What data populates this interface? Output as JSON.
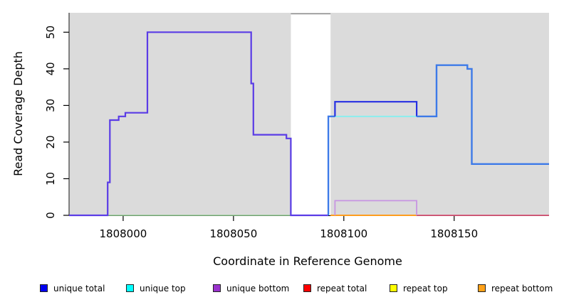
{
  "chart_data": {
    "type": "line",
    "subtype": "step-coverage-plot",
    "title": "",
    "xlabel": "Coordinate in Reference Genome",
    "ylabel": "Read Coverage Depth",
    "xlim": [
      1807975.5,
      1808193
    ],
    "ylim": [
      0,
      55.3
    ],
    "x_ticks": [
      1808000,
      1808050,
      1808100,
      1808150
    ],
    "y_ticks": [
      0,
      10,
      20,
      30,
      40,
      50
    ],
    "grid": false,
    "legend_position": "bottom",
    "colors": {
      "region_fill": "#dbdbdb",
      "gap_top_line": "#8c8c8c",
      "axis_line": "#3a3a3a",
      "tick": "#000000"
    },
    "regions": [
      {
        "name": "covered-region-left",
        "x1": 1807975.5,
        "x2": 1808076
      },
      {
        "name": "covered-region-right",
        "x1": 1808094,
        "x2": 1808193
      }
    ],
    "gap_region": {
      "name": "uncovered-gap",
      "x1": 1808076,
      "x2": 1808094
    },
    "series": [
      {
        "name": "baseline-overlap-green",
        "color": "#93ce93",
        "width": 1.6,
        "points": [
          [
            1807993,
            0
          ],
          [
            1808076,
            0
          ]
        ]
      },
      {
        "name": "repeat-bottom-line",
        "color": "#ff9d1e",
        "width": 2,
        "points": [
          [
            1808094,
            0
          ],
          [
            1808133,
            0
          ]
        ]
      },
      {
        "name": "repeat-total-line",
        "color": "#dd5578",
        "width": 1.8,
        "points": [
          [
            1808133,
            0
          ],
          [
            1808193,
            0
          ]
        ]
      },
      {
        "name": "unique-top-line",
        "color": "#85f0ef",
        "width": 1.8,
        "points": [
          [
            1808094,
            27
          ],
          [
            1808133,
            27
          ]
        ]
      },
      {
        "name": "unique-bottom-box",
        "color": "#c795e2",
        "width": 1.8,
        "points": [
          [
            1808096,
            0
          ],
          [
            1808096,
            4
          ],
          [
            1808133,
            4
          ],
          [
            1808133,
            0
          ]
        ]
      },
      {
        "name": "unique-total-left-block",
        "color": "#5a3ce6",
        "width": 2.2,
        "points": [
          [
            1807975.5,
            0
          ],
          [
            1807993,
            0
          ],
          [
            1807993,
            9
          ],
          [
            1807994,
            9
          ],
          [
            1807994,
            26
          ],
          [
            1807998,
            26
          ],
          [
            1807998,
            27
          ],
          [
            1808001,
            27
          ],
          [
            1808001,
            28
          ],
          [
            1808011,
            28
          ],
          [
            1808011,
            50
          ],
          [
            1808058,
            50
          ],
          [
            1808058,
            36
          ],
          [
            1808059,
            36
          ],
          [
            1808059,
            22
          ],
          [
            1808074,
            22
          ],
          [
            1808074,
            21
          ],
          [
            1808076,
            21
          ],
          [
            1808076,
            0
          ],
          [
            1808093,
            0
          ]
        ]
      },
      {
        "name": "unique-total-right-rise",
        "color": "#3d7ae8",
        "width": 2.4,
        "points": [
          [
            1808093,
            0
          ],
          [
            1808093,
            27
          ],
          [
            1808096,
            27
          ]
        ]
      },
      {
        "name": "unique-total-right-peak",
        "color": "#2630e2",
        "width": 2.2,
        "points": [
          [
            1808096,
            27
          ],
          [
            1808096,
            31
          ],
          [
            1808133,
            31
          ],
          [
            1808133,
            27
          ]
        ]
      },
      {
        "name": "unique-total-right-tail",
        "color": "#3d7ae8",
        "width": 2.4,
        "points": [
          [
            1808133,
            27
          ],
          [
            1808142,
            27
          ],
          [
            1808142,
            41
          ],
          [
            1808156,
            41
          ],
          [
            1808156,
            40
          ],
          [
            1808158,
            40
          ],
          [
            1808158,
            14
          ],
          [
            1808193,
            14
          ]
        ]
      }
    ],
    "legend": [
      {
        "label": "unique total",
        "color": "#0000f0"
      },
      {
        "label": "unique top",
        "color": "#00ffff"
      },
      {
        "label": "unique bottom",
        "color": "#9a32cd"
      },
      {
        "label": "repeat total",
        "color": "#ff0000"
      },
      {
        "label": "repeat top",
        "color": "#ffff00"
      },
      {
        "label": "repeat bottom",
        "color": "#ffa118"
      }
    ]
  }
}
